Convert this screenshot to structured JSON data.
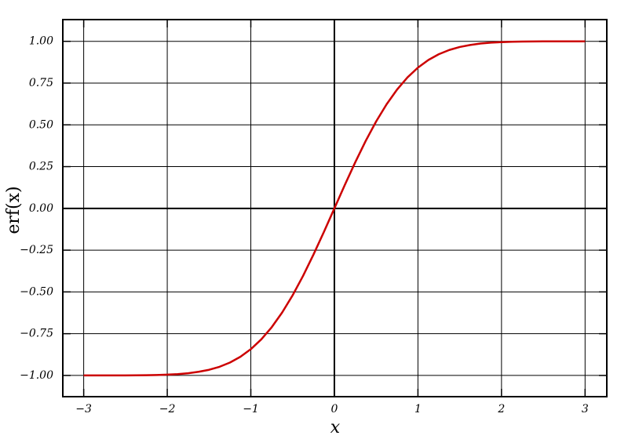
{
  "chart_data": {
    "type": "line",
    "x_label": "x",
    "y_label": "erf(x)",
    "x": [
      -3,
      -2.875,
      -2.75,
      -2.625,
      -2.5,
      -2.375,
      -2.25,
      -2.125,
      -2,
      -1.875,
      -1.75,
      -1.625,
      -1.5,
      -1.375,
      -1.25,
      -1.125,
      -1,
      -0.875,
      -0.75,
      -0.625,
      -0.5,
      -0.375,
      -0.25,
      -0.125,
      0,
      0.125,
      0.25,
      0.375,
      0.5,
      0.625,
      0.75,
      0.875,
      1,
      1.125,
      1.25,
      1.375,
      1.5,
      1.625,
      1.75,
      1.875,
      2,
      2.125,
      2.25,
      2.375,
      2.5,
      2.625,
      2.75,
      2.875,
      3
    ],
    "values": [
      -1,
      -1,
      -1,
      -0.9998,
      -0.9996,
      -0.9993,
      -0.9985,
      -0.9975,
      -0.9953,
      -0.992,
      -0.9867,
      -0.978,
      -0.9661,
      -0.9482,
      -0.9229,
      -0.8884,
      -0.8427,
      -0.7841,
      -0.7112,
      -0.6232,
      -0.5205,
      -0.4041,
      -0.2763,
      -0.1403,
      0,
      0.1403,
      0.2763,
      0.4041,
      0.5205,
      0.6232,
      0.7112,
      0.7841,
      0.8427,
      0.8884,
      0.9229,
      0.9482,
      0.9661,
      0.978,
      0.9867,
      0.992,
      0.9953,
      0.9975,
      0.9985,
      0.9993,
      0.9996,
      0.9998,
      1,
      1,
      1
    ],
    "color": "#cc0000",
    "xlim": [
      -3.25,
      3.26
    ],
    "ylim": [
      -1.127,
      1.13
    ],
    "xticks": [
      {
        "value": -3,
        "label": "−3"
      },
      {
        "value": -2,
        "label": "−2"
      },
      {
        "value": -1,
        "label": "−1"
      },
      0,
      1,
      2,
      3
    ],
    "yticks": [
      {
        "value": -1,
        "label": "−1.00"
      },
      {
        "value": -0.75,
        "label": "−0.75"
      },
      {
        "value": -0.5,
        "label": "−0.50"
      },
      {
        "value": -0.25,
        "label": "−0.25"
      },
      {
        "value": 0,
        "label": "0.00"
      },
      {
        "value": 0.25,
        "label": "0.25"
      },
      {
        "value": 0.5,
        "label": "0.50"
      },
      {
        "value": 0.75,
        "label": "0.75"
      },
      {
        "value": 1,
        "label": "1.00"
      }
    ],
    "grid": true
  }
}
